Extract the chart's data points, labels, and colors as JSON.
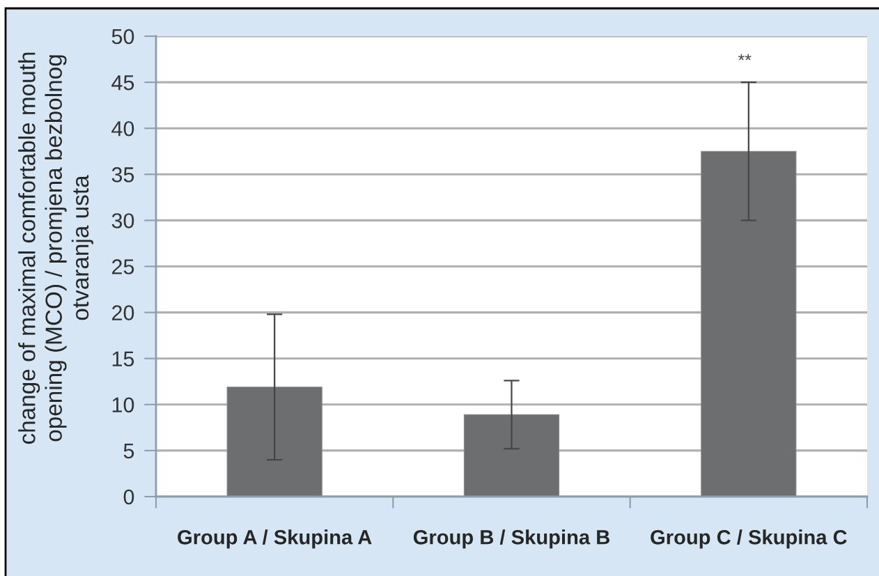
{
  "chart_data": {
    "type": "bar",
    "ylabel": "change of maximal comfortable mouth\nopening (MCO) / promjena bezbolnog\notvaranja usta",
    "categories": [
      "Group A / Skupina A",
      "Group B / Skupina B",
      "Group C / Skupina C"
    ],
    "values": [
      11.9,
      8.9,
      37.5
    ],
    "errors": [
      7.9,
      3.7,
      7.5
    ],
    "color": "#6d6e70",
    "ylim": [
      0,
      50
    ],
    "yticks": [
      0,
      5,
      10,
      15,
      20,
      25,
      30,
      35,
      40,
      45,
      50
    ],
    "grid": "y",
    "annotations": [
      "**"
    ]
  }
}
